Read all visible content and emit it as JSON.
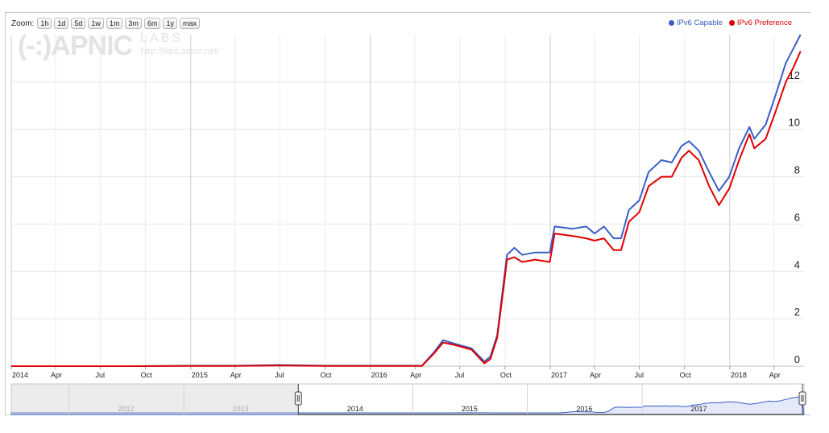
{
  "zoom": {
    "label": "Zoom:",
    "buttons": [
      "1h",
      "1d",
      "5d",
      "1w",
      "1m",
      "3m",
      "6m",
      "1y",
      "max"
    ]
  },
  "watermark": {
    "logo": "(-:)APNIC",
    "labs": "LABS",
    "url": "http://labs.apnic.net/"
  },
  "colors": {
    "capable": "#3a5ec8",
    "preference": "#e00000",
    "navigator_fill": "#e3e9f8",
    "navigator_line": "#3a5ec8"
  },
  "chart_data": {
    "type": "line",
    "title": "",
    "xlabel": "",
    "ylabel": "",
    "ylim": [
      0,
      14
    ],
    "grid": true,
    "legend_position": "top-right",
    "y_ticks": [
      "0",
      "2",
      "4",
      "6",
      "8",
      "10",
      "12"
    ],
    "x_ticks": [
      "2014",
      "Apr",
      "Jul",
      "Oct",
      "2015",
      "Apr",
      "Jul",
      "Oct",
      "2016",
      "Apr",
      "Jul",
      "Oct",
      "2017",
      "Apr",
      "Jul",
      "Oct",
      "2018",
      "Apr"
    ],
    "x_range": [
      "2014-01-01",
      "2018-06-01"
    ],
    "series": [
      {
        "name": "IPv6 Capable",
        "points": [
          [
            "2014-01-01",
            0.0
          ],
          [
            "2014-09-01",
            0.0
          ],
          [
            "2015-01-01",
            0.02
          ],
          [
            "2015-04-01",
            0.02
          ],
          [
            "2015-07-01",
            0.05
          ],
          [
            "2015-10-01",
            0.02
          ],
          [
            "2016-01-01",
            0.02
          ],
          [
            "2016-04-15",
            0.02
          ],
          [
            "2016-05-10",
            0.6
          ],
          [
            "2016-05-28",
            1.1
          ],
          [
            "2016-06-20",
            0.95
          ],
          [
            "2016-07-25",
            0.75
          ],
          [
            "2016-08-20",
            0.2
          ],
          [
            "2016-09-01",
            0.4
          ],
          [
            "2016-09-15",
            1.3
          ],
          [
            "2016-09-28",
            3.5
          ],
          [
            "2016-10-05",
            4.7
          ],
          [
            "2016-10-20",
            5.0
          ],
          [
            "2016-11-05",
            4.7
          ],
          [
            "2016-12-01",
            4.8
          ],
          [
            "2016-12-31",
            4.8
          ],
          [
            "2017-01-10",
            5.9
          ],
          [
            "2017-02-15",
            5.8
          ],
          [
            "2017-03-15",
            5.9
          ],
          [
            "2017-04-01",
            5.6
          ],
          [
            "2017-04-20",
            5.9
          ],
          [
            "2017-05-10",
            5.4
          ],
          [
            "2017-05-25",
            5.4
          ],
          [
            "2017-06-10",
            6.6
          ],
          [
            "2017-07-01",
            7.0
          ],
          [
            "2017-07-20",
            8.2
          ],
          [
            "2017-08-15",
            8.7
          ],
          [
            "2017-09-05",
            8.6
          ],
          [
            "2017-09-25",
            9.3
          ],
          [
            "2017-10-10",
            9.5
          ],
          [
            "2017-10-30",
            9.1
          ],
          [
            "2017-11-20",
            8.2
          ],
          [
            "2017-12-10",
            7.4
          ],
          [
            "2017-12-31",
            8.0
          ],
          [
            "2018-01-20",
            9.2
          ],
          [
            "2018-02-10",
            10.1
          ],
          [
            "2018-02-20",
            9.6
          ],
          [
            "2018-03-15",
            10.2
          ],
          [
            "2018-04-05",
            11.5
          ],
          [
            "2018-04-25",
            12.8
          ],
          [
            "2018-05-10",
            13.4
          ],
          [
            "2018-05-25",
            14.0
          ]
        ]
      },
      {
        "name": "IPv6 Preference",
        "points": [
          [
            "2014-01-01",
            0.0
          ],
          [
            "2014-09-01",
            0.0
          ],
          [
            "2015-01-01",
            0.01
          ],
          [
            "2015-04-01",
            0.01
          ],
          [
            "2015-07-01",
            0.03
          ],
          [
            "2015-10-01",
            0.01
          ],
          [
            "2016-01-01",
            0.01
          ],
          [
            "2016-04-15",
            0.01
          ],
          [
            "2016-05-10",
            0.55
          ],
          [
            "2016-05-28",
            1.0
          ],
          [
            "2016-06-20",
            0.9
          ],
          [
            "2016-07-25",
            0.7
          ],
          [
            "2016-08-20",
            0.12
          ],
          [
            "2016-09-01",
            0.3
          ],
          [
            "2016-09-15",
            1.2
          ],
          [
            "2016-09-28",
            3.3
          ],
          [
            "2016-10-05",
            4.5
          ],
          [
            "2016-10-20",
            4.6
          ],
          [
            "2016-11-05",
            4.4
          ],
          [
            "2016-12-01",
            4.5
          ],
          [
            "2016-12-31",
            4.4
          ],
          [
            "2017-01-10",
            5.6
          ],
          [
            "2017-02-15",
            5.5
          ],
          [
            "2017-03-15",
            5.4
          ],
          [
            "2017-04-01",
            5.3
          ],
          [
            "2017-04-20",
            5.4
          ],
          [
            "2017-05-10",
            4.9
          ],
          [
            "2017-05-25",
            4.9
          ],
          [
            "2017-06-10",
            6.1
          ],
          [
            "2017-07-01",
            6.5
          ],
          [
            "2017-07-20",
            7.6
          ],
          [
            "2017-08-15",
            8.0
          ],
          [
            "2017-09-05",
            8.0
          ],
          [
            "2017-09-25",
            8.8
          ],
          [
            "2017-10-10",
            9.1
          ],
          [
            "2017-10-30",
            8.7
          ],
          [
            "2017-11-20",
            7.6
          ],
          [
            "2017-12-10",
            6.8
          ],
          [
            "2017-12-31",
            7.5
          ],
          [
            "2018-01-20",
            8.7
          ],
          [
            "2018-02-10",
            9.8
          ],
          [
            "2018-02-20",
            9.2
          ],
          [
            "2018-03-15",
            9.6
          ],
          [
            "2018-04-05",
            10.8
          ],
          [
            "2018-04-25",
            12.0
          ],
          [
            "2018-05-10",
            12.6
          ],
          [
            "2018-05-25",
            13.3
          ]
        ]
      }
    ]
  },
  "navigator": {
    "year_labels": [
      "2012",
      "2013",
      "2014",
      "2015",
      "2016",
      "2017"
    ],
    "selection_start": "2014-01-01",
    "selection_end": "2018-06-01"
  }
}
